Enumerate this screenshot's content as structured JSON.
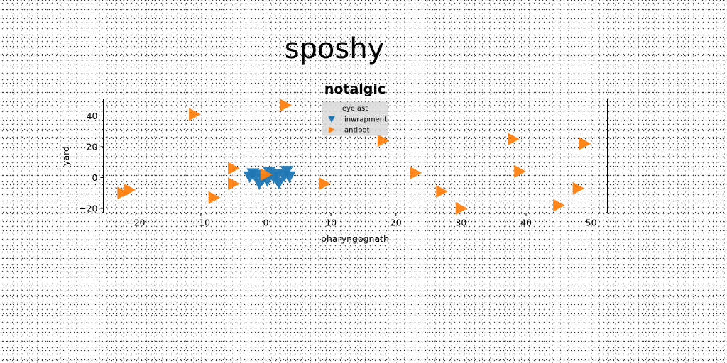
{
  "chart_data": {
    "type": "scatter",
    "suptitle": "sposhy",
    "title": "notalgic",
    "xlabel": "pharyngognath",
    "ylabel": "yard",
    "xlim": [
      -25,
      52.5
    ],
    "ylim": [
      -23,
      51
    ],
    "xticks": [
      -20,
      -10,
      0,
      10,
      20,
      30,
      40,
      50
    ],
    "yticks": [
      -20,
      0,
      20,
      40
    ],
    "grid": false,
    "legend": {
      "title": "eyelast",
      "placement": "top-center"
    },
    "series": [
      {
        "name": "inwrapment",
        "marker": "triangle-down",
        "color": "#1f77b4",
        "x": [
          -2.5,
          -1.5,
          -0.5,
          0.5,
          1.2,
          2.0,
          2.8,
          3.2,
          -1.0,
          1.8,
          0.2,
          3.6,
          -2.0
        ],
        "y": [
          0.5,
          1.5,
          -1.0,
          3.5,
          0.0,
          -3.5,
          1.0,
          4.0,
          -4.0,
          2.0,
          -2.0,
          0.5,
          2.5
        ]
      },
      {
        "name": "antipot",
        "marker": "triangle-right",
        "color": "#ff7f0e",
        "x": [
          3,
          -11,
          18,
          38,
          49,
          -5,
          0,
          23,
          39,
          -5,
          9,
          27,
          48,
          -21,
          -22,
          -8,
          45,
          30
        ],
        "y": [
          47,
          41,
          24,
          25,
          22,
          6,
          2,
          3,
          4,
          -4,
          -4,
          -9,
          -7,
          -8,
          -10,
          -13,
          -18,
          -20
        ]
      }
    ]
  }
}
